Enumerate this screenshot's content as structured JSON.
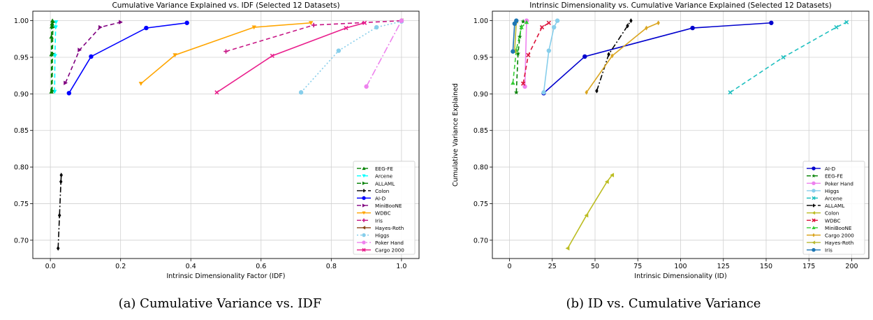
{
  "figure": {
    "caption_a": "(a) Cumulative Variance vs. IDF",
    "caption_b": "(b) ID vs. Cumulative Variance"
  },
  "chart_data": [
    {
      "type": "line",
      "title": "Cumulative Variance Explained vs. IDF (Selected 12 Datasets)",
      "xlabel": "Intrinsic Dimensionality Factor (IDF)",
      "ylabel": "Cumulative Variance Explained",
      "xlim": [
        -0.05,
        1.05
      ],
      "ylim": [
        0.675,
        1.013
      ],
      "xticks": [
        0.0,
        0.2,
        0.4,
        0.6,
        0.8,
        1.0
      ],
      "xtick_labels": [
        "0.0",
        "0.2",
        "0.4",
        "0.6",
        "0.8",
        "1.0"
      ],
      "yticks": [
        0.7,
        0.75,
        0.8,
        0.85,
        0.9,
        0.95,
        1.0
      ],
      "ytick_labels": [
        "0.70",
        "0.75",
        "0.80",
        "0.85",
        "0.90",
        "0.95",
        "1.00"
      ],
      "grid": true,
      "legend_position": "bottom-right",
      "series": [
        {
          "name": "EEG-FE",
          "color": "#008000",
          "dash": "6,4",
          "marker": "triangle-up",
          "points": [
            [
              0.003,
              0.903
            ],
            [
              0.003,
              0.954
            ],
            [
              0.003,
              0.978
            ],
            [
              0.004,
              0.992
            ],
            [
              0.005,
              0.996
            ],
            [
              0.006,
              1.0
            ]
          ]
        },
        {
          "name": "Arcene",
          "color": "#00ffff",
          "dash": "6,4",
          "marker": "triangle-down",
          "points": [
            [
              0.012,
              0.903
            ],
            [
              0.013,
              0.952
            ],
            [
              0.015,
              0.991
            ],
            [
              0.016,
              0.998
            ]
          ]
        },
        {
          "name": "ALLAML",
          "color": "#008000",
          "dash": "6,4",
          "marker": "triangle-right",
          "points": [
            [
              0.005,
              0.904
            ],
            [
              0.006,
              0.955
            ],
            [
              0.007,
              0.991
            ],
            [
              0.008,
              0.998
            ]
          ]
        },
        {
          "name": "Colon",
          "color": "#000000",
          "dash": "8,3,2,3",
          "marker": "diamond",
          "points": [
            [
              0.022,
              0.689
            ],
            [
              0.026,
              0.734
            ],
            [
              0.03,
              0.78
            ],
            [
              0.031,
              0.789
            ]
          ]
        },
        {
          "name": "AI-D",
          "color": "#0000ff",
          "dash": "",
          "marker": "circle",
          "points": [
            [
              0.053,
              0.901
            ],
            [
              0.116,
              0.951
            ],
            [
              0.273,
              0.99
            ],
            [
              0.389,
              0.997
            ]
          ]
        },
        {
          "name": "MiniBooNE",
          "color": "#800080",
          "dash": "6,4",
          "marker": "triangle-right",
          "points": [
            [
              0.043,
              0.915
            ],
            [
              0.083,
              0.96
            ],
            [
              0.142,
              0.991
            ],
            [
              0.2,
              0.998
            ]
          ]
        },
        {
          "name": "WDBC",
          "color": "#ffa500",
          "dash": "",
          "marker": "triangle-down",
          "points": [
            [
              0.258,
              0.914
            ],
            [
              0.355,
              0.953
            ],
            [
              0.58,
              0.991
            ],
            [
              0.742,
              0.997
            ]
          ]
        },
        {
          "name": "Iris",
          "color": "#c71585",
          "dash": "6,4",
          "marker": "plus",
          "points": [
            [
              0.5,
              0.958
            ],
            [
              0.75,
              0.994
            ],
            [
              1.0,
              1.0
            ]
          ]
        },
        {
          "name": "Hayes-Roth",
          "color": "#8b4513",
          "dash": "",
          "marker": "triangle-left",
          "points": [
            [
              1.0,
              1.0
            ]
          ]
        },
        {
          "name": "Higgs",
          "color": "#87ceeb",
          "dash": "2,3",
          "marker": "circle",
          "points": [
            [
              0.714,
              0.902
            ],
            [
              0.821,
              0.959
            ],
            [
              0.929,
              0.991
            ],
            [
              1.0,
              0.999
            ]
          ]
        },
        {
          "name": "Poker Hand",
          "color": "#ee82ee",
          "dash": "10,3,2,3",
          "marker": "circle",
          "points": [
            [
              0.9,
              0.91
            ],
            [
              1.0,
              1.0
            ]
          ]
        },
        {
          "name": "Cargo 2000",
          "color": "#e91e8c",
          "dash": "",
          "marker": "x",
          "points": [
            [
              0.474,
              0.902
            ],
            [
              0.632,
              0.952
            ],
            [
              0.842,
              0.99
            ],
            [
              0.895,
              0.997
            ]
          ]
        }
      ]
    },
    {
      "type": "line",
      "title": "Intrinsic Dimensionality vs. Cumulative Variance Explained (Selected 12 Datasets)",
      "xlabel": "Intrinsic Dimensionality (ID)",
      "ylabel": "Cumulative Variance Explained",
      "xlim": [
        -10,
        210
      ],
      "ylim": [
        0.675,
        1.013
      ],
      "xticks": [
        0,
        25,
        50,
        75,
        100,
        125,
        150,
        175,
        200
      ],
      "xtick_labels": [
        "0",
        "25",
        "50",
        "75",
        "100",
        "125",
        "150",
        "175",
        "200"
      ],
      "yticks": [
        0.7,
        0.75,
        0.8,
        0.85,
        0.9,
        0.95,
        1.0
      ],
      "ytick_labels": [
        "0.70",
        "0.75",
        "0.80",
        "0.85",
        "0.90",
        "0.95",
        "1.00"
      ],
      "grid": true,
      "legend_position": "bottom-right",
      "series": [
        {
          "name": "AI-D",
          "color": "#0000cd",
          "dash": "",
          "marker": "circle",
          "points": [
            [
              20,
              0.901
            ],
            [
              44,
              0.951
            ],
            [
              107,
              0.99
            ],
            [
              153,
              0.997
            ]
          ]
        },
        {
          "name": "EEG-FE",
          "color": "#008000",
          "dash": "6,4",
          "marker": "star",
          "points": [
            [
              4,
              0.902
            ],
            [
              5,
              0.955
            ],
            [
              6,
              0.978
            ],
            [
              7,
              0.992
            ],
            [
              8,
              0.999
            ]
          ]
        },
        {
          "name": "Poker Hand",
          "color": "#ee82ee",
          "dash": "",
          "marker": "circle",
          "points": [
            [
              9,
              0.91
            ],
            [
              10,
              1.0
            ]
          ]
        },
        {
          "name": "Higgs",
          "color": "#87ceeb",
          "dash": "",
          "marker": "circle",
          "points": [
            [
              20,
              0.902
            ],
            [
              23,
              0.959
            ],
            [
              26,
              0.991
            ],
            [
              28,
              1.0
            ]
          ]
        },
        {
          "name": "Arcene",
          "color": "#20c0c0",
          "dash": "6,4",
          "marker": "x",
          "points": [
            [
              129,
              0.902
            ],
            [
              160,
              0.95
            ],
            [
              191,
              0.991
            ],
            [
              197,
              0.998
            ]
          ]
        },
        {
          "name": "ALLAML",
          "color": "#000000",
          "dash": "8,3,2,3",
          "marker": "diamond",
          "points": [
            [
              51,
              0.904
            ],
            [
              58,
              0.954
            ],
            [
              69,
              0.993
            ],
            [
              71,
              1.0
            ]
          ]
        },
        {
          "name": "Colon",
          "color": "#bcbd22",
          "dash": "",
          "marker": "triangle-left",
          "points": [
            [
              34,
              0.689
            ],
            [
              45,
              0.734
            ],
            [
              57,
              0.78
            ],
            [
              60,
              0.789
            ]
          ]
        },
        {
          "name": "WDBC",
          "color": "#dc143c",
          "dash": "6,4",
          "marker": "x",
          "points": [
            [
              8,
              0.914
            ],
            [
              11,
              0.953
            ],
            [
              19,
              0.991
            ],
            [
              23,
              0.997
            ]
          ]
        },
        {
          "name": "MiniBooNE",
          "color": "#32cd32",
          "dash": "6,4",
          "marker": "triangle-up",
          "points": [
            [
              2,
              0.915
            ],
            [
              4,
              0.96
            ],
            [
              7,
              0.991
            ],
            [
              10,
              0.998
            ]
          ]
        },
        {
          "name": "Cargo 2000",
          "color": "#daa520",
          "dash": "",
          "marker": "diamond",
          "points": [
            [
              45,
              0.902
            ],
            [
              60,
              0.952
            ],
            [
              80,
              0.99
            ],
            [
              87,
              0.997
            ]
          ]
        },
        {
          "name": "Hayes-Roth",
          "color": "#b8b830",
          "dash": "",
          "marker": "triangle-left",
          "points": [
            [
              3,
              0.958
            ],
            [
              4,
              0.999
            ]
          ]
        },
        {
          "name": "Iris",
          "color": "#1f77b4",
          "dash": "",
          "marker": "circle",
          "points": [
            [
              2,
              0.958
            ],
            [
              3,
              0.996
            ],
            [
              4,
              1.0
            ]
          ]
        }
      ]
    }
  ]
}
